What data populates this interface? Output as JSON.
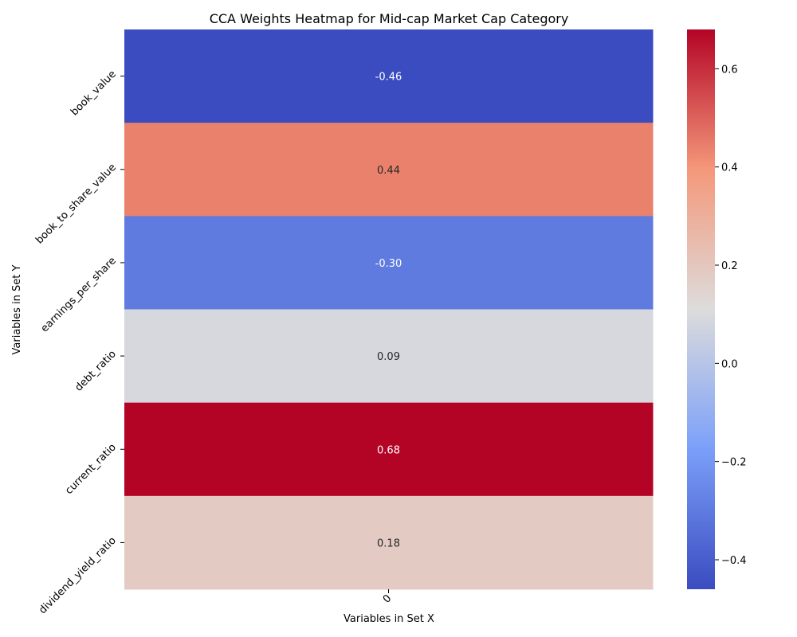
{
  "chart_data": {
    "type": "heatmap",
    "title": "CCA Weights Heatmap for Mid-cap Market Cap Category",
    "xlabel": "Variables in Set X",
    "ylabel": "Variables in Set Y",
    "x_categories": [
      "0"
    ],
    "y_categories": [
      "book_value",
      "book_to_share_value",
      "earnings_per_share",
      "debt_ratio",
      "current_ratio",
      "dividend_yield_ratio"
    ],
    "values": [
      [
        -0.46
      ],
      [
        0.44
      ],
      [
        -0.3
      ],
      [
        0.09
      ],
      [
        0.68
      ],
      [
        0.18
      ]
    ],
    "cell_labels": [
      "-0.46",
      "0.44",
      "-0.30",
      "0.09",
      "0.68",
      "0.18"
    ],
    "colormap": "coolwarm",
    "color_range": [
      -0.46,
      0.68
    ],
    "colorbar_ticks": [
      0.6,
      0.4,
      0.2,
      0.0,
      -0.2,
      -0.4
    ],
    "colorbar_tick_labels": [
      "0.6",
      "0.4",
      "0.2",
      "0.0",
      "−0.2",
      "−0.4"
    ],
    "grid": false,
    "legend": "colorbar-right"
  }
}
